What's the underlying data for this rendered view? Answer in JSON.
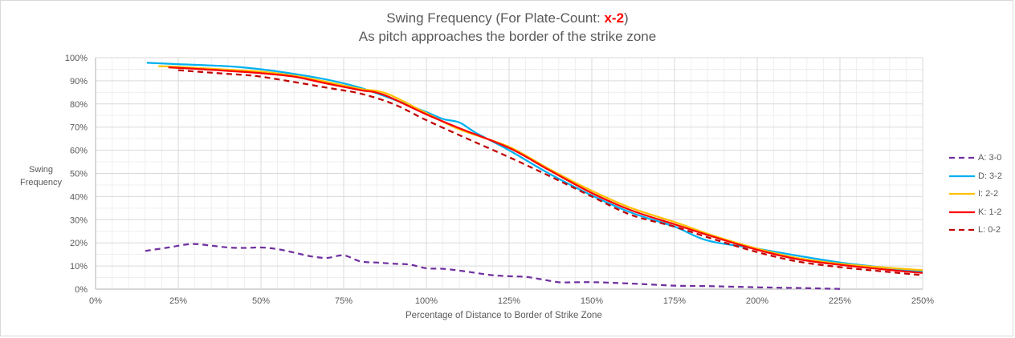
{
  "chart_data": {
    "type": "line",
    "title": "Swing Frequency (For Plate-Count: ",
    "title_highlight": "x-2",
    "title_close": ")",
    "subtitle": "As pitch approaches the border of the strike zone",
    "xlabel": "Percentage of Distance to Border of Strike Zone",
    "ylabel_line1": "Swing",
    "ylabel_line2": "Frequency",
    "xlim": [
      0,
      250
    ],
    "ylim": [
      0,
      100
    ],
    "x_major_step": 25,
    "x_minor_step": 5,
    "y_major_step": 10,
    "y_minor_step": 5,
    "grid": true,
    "legend_position": "right",
    "x_ticks": [
      "0%",
      "25%",
      "50%",
      "75%",
      "100%",
      "125%",
      "150%",
      "175%",
      "200%",
      "225%",
      "250%"
    ],
    "y_ticks": [
      "0%",
      "10%",
      "20%",
      "30%",
      "40%",
      "50%",
      "60%",
      "70%",
      "80%",
      "90%",
      "100%"
    ],
    "highlight_color": "#ff0000",
    "series": [
      {
        "name": "A: 3-0",
        "color": "#7030a0",
        "dashed": true,
        "points": [
          [
            15,
            16.5
          ],
          [
            22,
            18
          ],
          [
            29,
            19.5
          ],
          [
            35,
            18.8
          ],
          [
            40,
            18
          ],
          [
            45,
            17.8
          ],
          [
            50,
            18
          ],
          [
            55,
            17.3
          ],
          [
            60,
            15.8
          ],
          [
            65,
            14.2
          ],
          [
            70,
            13.5
          ],
          [
            75,
            14.6
          ],
          [
            80,
            12
          ],
          [
            85,
            11.5
          ],
          [
            90,
            11
          ],
          [
            95,
            10.6
          ],
          [
            100,
            9
          ],
          [
            105,
            8.8
          ],
          [
            110,
            8
          ],
          [
            115,
            7
          ],
          [
            120,
            6
          ],
          [
            125,
            5.6
          ],
          [
            130,
            5.3
          ],
          [
            135,
            4.2
          ],
          [
            140,
            3
          ],
          [
            145,
            3
          ],
          [
            150,
            3
          ],
          [
            155,
            2.8
          ],
          [
            165,
            2.2
          ],
          [
            175,
            1.5
          ],
          [
            185,
            1.3
          ],
          [
            200,
            0.8
          ],
          [
            212,
            0.5
          ],
          [
            225,
            0.1
          ]
        ]
      },
      {
        "name": "D: 3-2",
        "color": "#00b0f0",
        "dashed": false,
        "points": [
          [
            15.5,
            97.8
          ],
          [
            25,
            97.2
          ],
          [
            40,
            96.3
          ],
          [
            50,
            95
          ],
          [
            60,
            93
          ],
          [
            70,
            90.5
          ],
          [
            80,
            87
          ],
          [
            90,
            82
          ],
          [
            100,
            76.5
          ],
          [
            105,
            73.5
          ],
          [
            110,
            72
          ],
          [
            115,
            67.5
          ],
          [
            125,
            60
          ],
          [
            137,
            50
          ],
          [
            150,
            40.5
          ],
          [
            162,
            33
          ],
          [
            175,
            27
          ],
          [
            185,
            21
          ],
          [
            200,
            17.5
          ],
          [
            212,
            14.5
          ],
          [
            225,
            11.5
          ],
          [
            237,
            9.5
          ],
          [
            250,
            7.5
          ]
        ]
      },
      {
        "name": "I: 2-2",
        "color": "#ffc000",
        "dashed": false,
        "points": [
          [
            19,
            96.3
          ],
          [
            25,
            96
          ],
          [
            40,
            94.8
          ],
          [
            50,
            94
          ],
          [
            60,
            92.2
          ],
          [
            70,
            89.5
          ],
          [
            80,
            86.5
          ],
          [
            88,
            84.5
          ],
          [
            100,
            76
          ],
          [
            110,
            69
          ],
          [
            125,
            61.5
          ],
          [
            137,
            52
          ],
          [
            150,
            42.5
          ],
          [
            162,
            35
          ],
          [
            175,
            29
          ],
          [
            187,
            23
          ],
          [
            200,
            17.5
          ],
          [
            212,
            13.5
          ],
          [
            225,
            11
          ],
          [
            237,
            9.5
          ],
          [
            250,
            8.2
          ]
        ]
      },
      {
        "name": "K: 1-2",
        "color": "#ff0000",
        "dashed": false,
        "points": [
          [
            22,
            95.8
          ],
          [
            30,
            95.2
          ],
          [
            40,
            94.3
          ],
          [
            50,
            93.3
          ],
          [
            60,
            91.8
          ],
          [
            70,
            88.8
          ],
          [
            80,
            86
          ],
          [
            87,
            84
          ],
          [
            100,
            75.5
          ],
          [
            110,
            69.5
          ],
          [
            125,
            61
          ],
          [
            137,
            51.5
          ],
          [
            150,
            41.5
          ],
          [
            162,
            34
          ],
          [
            175,
            28
          ],
          [
            187,
            22.5
          ],
          [
            200,
            17
          ],
          [
            212,
            13
          ],
          [
            225,
            10.5
          ],
          [
            237,
            8.7
          ],
          [
            250,
            7
          ]
        ]
      },
      {
        "name": "L: 0-2",
        "color": "#c00000",
        "dashed": true,
        "points": [
          [
            25,
            94.6
          ],
          [
            35,
            93.5
          ],
          [
            45,
            92.5
          ],
          [
            50,
            91.8
          ],
          [
            60,
            89.5
          ],
          [
            70,
            87
          ],
          [
            80,
            84.5
          ],
          [
            90,
            80
          ],
          [
            100,
            73
          ],
          [
            110,
            66.5
          ],
          [
            125,
            57
          ],
          [
            137,
            49
          ],
          [
            150,
            40
          ],
          [
            162,
            32
          ],
          [
            175,
            27
          ],
          [
            187,
            21.5
          ],
          [
            200,
            16
          ],
          [
            212,
            12
          ],
          [
            225,
            9.5
          ],
          [
            237,
            7.8
          ],
          [
            250,
            6
          ]
        ]
      }
    ]
  }
}
